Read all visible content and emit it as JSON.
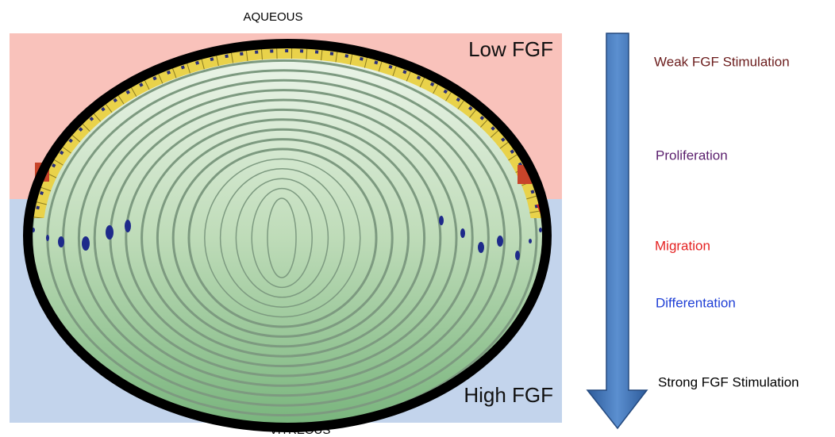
{
  "top_label": "AQUEOUS",
  "bottom_label": "VITREOUS",
  "zones": {
    "top": "Low FGF",
    "bottom": "High FGF"
  },
  "gradient_labels": [
    "Weak FGF Stimulation",
    "Proliferation",
    "Migration",
    "Differentation",
    "Strong FGF Stimulation"
  ]
}
